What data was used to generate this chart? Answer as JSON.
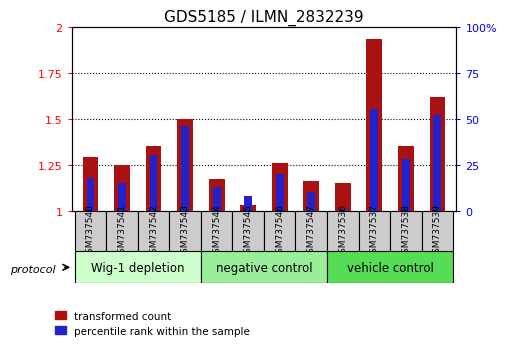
{
  "title": "GDS5185 / ILMN_2832239",
  "samples": [
    "GSM737540",
    "GSM737541",
    "GSM737542",
    "GSM737543",
    "GSM737544",
    "GSM737545",
    "GSM737546",
    "GSM737547",
    "GSM737536",
    "GSM737537",
    "GSM737538",
    "GSM737539"
  ],
  "red_values": [
    1.29,
    1.25,
    1.35,
    1.5,
    1.17,
    1.03,
    1.26,
    1.16,
    1.15,
    1.93,
    1.35,
    1.62
  ],
  "blue_values": [
    18,
    15,
    30,
    46,
    13,
    8,
    20,
    10,
    1,
    55,
    28,
    52
  ],
  "groups": [
    {
      "label": "Wig-1 depletion",
      "start": 0,
      "end": 4,
      "color": "#ccffcc"
    },
    {
      "label": "negative control",
      "start": 4,
      "end": 8,
      "color": "#99ee99"
    },
    {
      "label": "vehicle control",
      "start": 8,
      "end": 12,
      "color": "#55dd55"
    }
  ],
  "ylim_left": [
    1.0,
    2.0
  ],
  "ylim_right": [
    0,
    100
  ],
  "yticks_left": [
    1.0,
    1.25,
    1.5,
    1.75,
    2.0
  ],
  "yticks_right": [
    0,
    25,
    50,
    75,
    100
  ],
  "ytick_labels_left": [
    "1",
    "1.25",
    "1.5",
    "1.75",
    "2"
  ],
  "ytick_labels_right": [
    "0",
    "25",
    "50",
    "75",
    "100%"
  ],
  "dotted_lines": [
    1.25,
    1.5,
    1.75
  ],
  "red_color": "#aa1111",
  "blue_color": "#2222cc",
  "bar_width": 0.5,
  "blue_bar_width": 0.25,
  "protocol_label": "protocol",
  "legend_red": "transformed count",
  "legend_blue": "percentile rank within the sample",
  "title_fontsize": 11,
  "tick_fontsize": 8,
  "label_fontsize": 9
}
